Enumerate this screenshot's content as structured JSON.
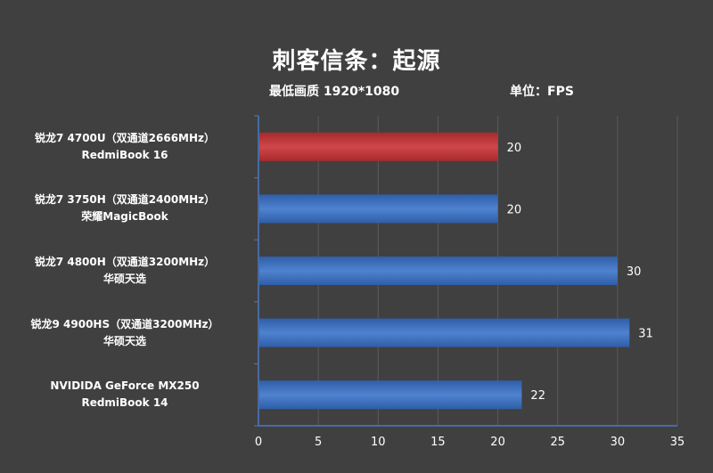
{
  "chart_data": {
    "type": "bar",
    "orientation": "horizontal",
    "title": "刺客信条：起源",
    "subtitle": "最低画质 1920*1080",
    "unit_label": "单位：FPS",
    "xlabel": "",
    "ylabel": "",
    "xlim": [
      0,
      35
    ],
    "x_ticks": [
      "0",
      "5",
      "10",
      "15",
      "20",
      "25",
      "30",
      "35"
    ],
    "grid": "vertical",
    "categories": [
      {
        "line1": "锐龙7 4700U（双通道2666MHz）",
        "line2": "RedmiBook 16"
      },
      {
        "line1": "锐龙7 3750H（双通道2400MHz）",
        "line2": "荣耀MagicBook"
      },
      {
        "line1": "锐龙7 4800H（双通道3200MHz）",
        "line2": "华硕天选"
      },
      {
        "line1": "锐龙9 4900HS（双通道3200MHz）",
        "line2": "华硕天选"
      },
      {
        "line1": "NVIDIDA GeForce MX250",
        "line2": "RedmiBook 14"
      }
    ],
    "values": [
      20,
      20,
      30,
      31,
      22
    ],
    "value_labels": [
      "20",
      "20",
      "30",
      "31",
      "22"
    ],
    "bar_colors": [
      "#c0393b",
      "#3d6fbd",
      "#3d6fbd",
      "#3d6fbd",
      "#3d6fbd"
    ]
  },
  "colors": {
    "background": "#404040",
    "grid": "#5a5a5a",
    "axis": "#4a78c2",
    "highlight_bar": "#c0393b",
    "default_bar": "#3d6fbd",
    "text": "#ffffff",
    "value_text": "#ffffff"
  }
}
